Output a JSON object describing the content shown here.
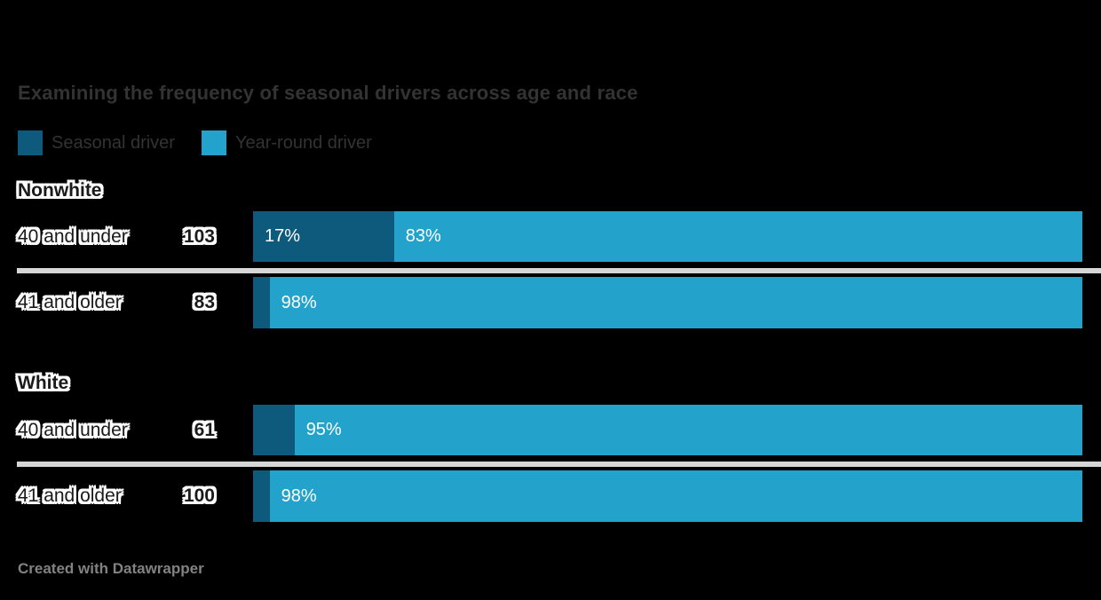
{
  "title": "Examining the frequency of seasonal drivers across age and race",
  "legend": {
    "items": [
      {
        "label": "Seasonal driver",
        "color": "#0e5a7c"
      },
      {
        "label": "Year-round driver",
        "color": "#23a2cb"
      }
    ]
  },
  "footer": "Created with Datawrapper",
  "colors": {
    "background": "#000000",
    "seasonal": "#0e5a7c",
    "yearround": "#23a2cb",
    "title_text": "#333333",
    "label_text": "#1a1a1a",
    "bar_label_text": "#ffffff",
    "divider": "#d6d6d6",
    "footer_text": "#828282"
  },
  "chart_data": {
    "type": "bar",
    "variant": "horizontal-stacked-percent",
    "title": "Examining the frequency of seasonal drivers across age and race",
    "series_names": [
      "Seasonal driver",
      "Year-round driver"
    ],
    "axis_range": [
      0,
      100
    ],
    "grid": false,
    "legend_position": "top-left",
    "groups": [
      {
        "name": "Nonwhite",
        "rows": [
          {
            "label": "40 and under",
            "n": "103",
            "seasonal_pct": 17,
            "yearround_pct": 83,
            "seasonal_label": "17%",
            "yearround_label": "83%"
          },
          {
            "label": "41 and older",
            "n": "83",
            "seasonal_pct": 2,
            "yearround_pct": 98,
            "seasonal_label": "",
            "yearround_label": "98%"
          }
        ]
      },
      {
        "name": "White",
        "rows": [
          {
            "label": "40 and under",
            "n": "61",
            "seasonal_pct": 5,
            "yearround_pct": 95,
            "seasonal_label": "",
            "yearround_label": "95%"
          },
          {
            "label": "41 and older",
            "n": "100",
            "seasonal_pct": 2,
            "yearround_pct": 98,
            "seasonal_label": "",
            "yearround_label": "98%"
          }
        ]
      }
    ]
  }
}
